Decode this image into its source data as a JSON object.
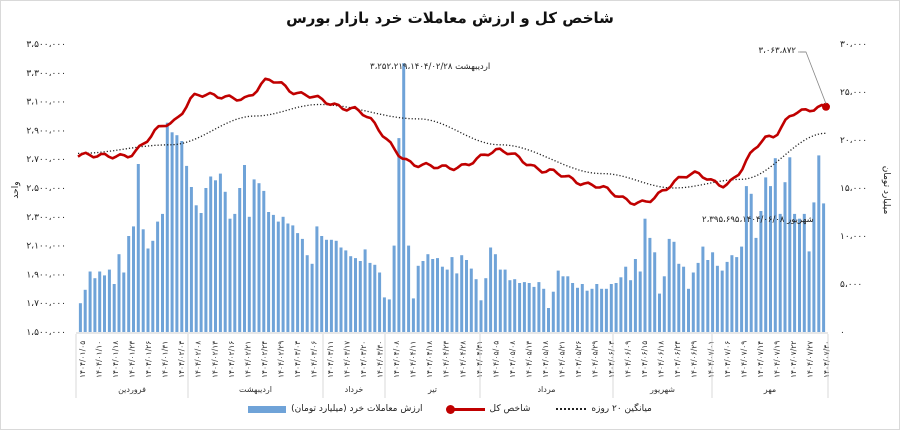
{
  "title": "شاخص کل و ارزش معاملات خرد بازار بورس",
  "left_axis": {
    "label": "واحد",
    "ticks": [
      "۳،۵۰۰،۰۰۰",
      "۳،۳۰۰،۰۰۰",
      "۳،۱۰۰،۰۰۰",
      "۲،۹۰۰،۰۰۰",
      "۲،۷۰۰،۰۰۰",
      "۲،۵۰۰،۰۰۰",
      "۲،۳۰۰،۰۰۰",
      "۲،۱۰۰،۰۰۰",
      "۱،۹۰۰،۰۰۰",
      "۱،۷۰۰،۰۰۰",
      "۱،۵۰۰،۰۰۰"
    ]
  },
  "right_axis": {
    "label": "میلیارد تومان",
    "ticks": [
      "۳۰،۰۰۰",
      "۲۵،۰۰۰",
      "۲۰،۰۰۰",
      "۱۵،۰۰۰",
      "۱۰،۰۰۰",
      "۵،۰۰۰",
      "۰"
    ]
  },
  "annotations": {
    "peak": "اردیبهشت ۳،۲۵۲،۲۱۹،۱۴۰۴/۰۲/۲۸",
    "trough": "شهریور ۲،۳۹۵،۶۹۵،۱۴۰۴/۰۶/۰۸",
    "last": "۳،۰۶۳،۸۷۲"
  },
  "months": [
    "فروردین",
    "اردیبهشت",
    "خرداد",
    "تیر",
    "مرداد",
    "شهریور",
    "مهر"
  ],
  "legend": {
    "bars": "ارزش معاملات خرد (میلیارد تومان)",
    "line": "شاخص کل",
    "ma": "میانگین ۲۰ روزه"
  },
  "x_tick_labels": [
    "۱۴۰۴/۰۱/۰۵",
    "۱۴۰۴/۰۱/۱۰",
    "۱۴۰۴/۰۱/۱۸",
    "۱۴۰۴/۰۱/۲۳",
    "۱۴۰۴/۰۱/۲۶",
    "۱۴۰۴/۰۱/۳۱",
    "۱۴۰۴/۰۲/۰۳",
    "۱۴۰۴/۰۲/۰۸",
    "۱۴۰۴/۰۲/۱۳",
    "۱۴۰۴/۰۲/۱۶",
    "۱۴۰۴/۰۲/۲۱",
    "۱۴۰۴/۰۲/۲۴",
    "۱۴۰۴/۰۲/۲۹",
    "۱۴۰۴/۰۳/۰۳",
    "۱۴۰۴/۰۳/۰۶",
    "۱۴۰۴/۰۳/۱۱",
    "۱۴۰۴/۰۳/۱۷",
    "۱۴۰۴/۰۳/۲۰",
    "۱۴۰۴/۰۳/۳۰",
    "۱۴۰۴/۰۴/۰۸",
    "۱۴۰۴/۰۴/۱۱",
    "۱۴۰۴/۰۴/۱۸",
    "۱۴۰۴/۰۴/۲۳",
    "۱۴۰۴/۰۴/۲۸",
    "۱۴۰۴/۰۴/۳۱",
    "۱۴۰۴/۰۵/۰۵",
    "۱۴۰۴/۰۵/۰۸",
    "۱۴۰۴/۰۵/۱۳",
    "۱۴۰۴/۰۵/۱۸",
    "۱۴۰۴/۰۵/۲۱",
    "۱۴۰۴/۰۵/۲۶",
    "۱۴۰۴/۰۵/۲۹",
    "۱۴۰۴/۰۶/۰۳",
    "۱۴۰۴/۰۶/۰۹",
    "۱۴۰۴/۰۶/۱۵",
    "۱۴۰۴/۰۶/۱۸",
    "۱۴۰۴/۰۶/۲۴",
    "۱۴۰۴/۰۶/۲۹",
    "۱۴۰۴/۰۷/۰۱",
    "۱۴۰۴/۰۷/۰۶",
    "۱۴۰۴/۰۷/۰۹",
    "۱۴۰۴/۰۷/۱۴",
    "۱۴۰۴/۰۷/۱۹",
    "۱۴۰۴/۰۷/۲۲",
    "۱۴۰۴/۰۷/۲۷",
    "۱۴۰۴/۰۷/۳۰"
  ],
  "chart_data": {
    "type": "bar+line",
    "title": "شاخص کل و ارزش معاملات خرد بازار بورس",
    "xlabel": "",
    "ylabel_left": "واحد",
    "ylabel_right": "میلیارد تومان",
    "ylim_left": [
      1500000,
      3500000
    ],
    "ylim_right": [
      0,
      30000
    ],
    "grid": false,
    "legend_position": "bottom",
    "colors": {
      "bars": "#6fa3d8",
      "index": "#c00000",
      "ma": "#222222"
    },
    "series": [
      {
        "name": "ارزش معاملات خرد (میلیارد تومان)",
        "type": "bar",
        "axis": "right",
        "values": [
          3000,
          4400,
          6300,
          5600,
          6300,
          5900,
          6500,
          5000,
          8100,
          6200,
          10000,
          11000,
          17500,
          10700,
          8700,
          9500,
          11500,
          12300,
          21800,
          20800,
          20500,
          19900,
          17300,
          15100,
          13200,
          12400,
          15000,
          16200,
          15800,
          16500,
          14600,
          11800,
          12300,
          15000,
          17400,
          12000,
          15900,
          15500,
          14700,
          12500,
          12200,
          11500,
          12000,
          11300,
          11100,
          10300,
          9700,
          8000,
          7100,
          11000,
          10000,
          9600,
          9600,
          9500,
          8800,
          8500,
          7900,
          7700,
          7400,
          8600,
          7200,
          7000,
          6200,
          3600,
          3400,
          9000,
          20200,
          28000,
          9000,
          3500,
          6900,
          7400,
          8100,
          7600,
          7700,
          6800,
          6500,
          7800,
          6100,
          8000,
          7500,
          6600,
          5500,
          3300,
          5600,
          8800,
          8100,
          6500,
          6500,
          5400,
          5500,
          5100,
          5200,
          5100,
          4700,
          5200,
          4500,
          2500,
          4200,
          6400,
          5800,
          5800,
          5100,
          4600,
          5000,
          4300,
          4500,
          5000,
          4500,
          4500,
          5000,
          5100,
          5700,
          6800,
          5400,
          7600,
          6300,
          11800,
          9800,
          8300,
          4000,
          5800,
          9700,
          9400,
          7100,
          6800,
          4500,
          6200,
          7200,
          8900,
          7500,
          8300,
          6900,
          6400,
          7300,
          8000,
          7800,
          8900,
          15200,
          14400,
          9800,
          12600,
          16100,
          15200,
          18100,
          12300,
          15600,
          18200,
          12300,
          11800,
          12300,
          8400,
          13500,
          18400,
          13400
        ],
        "note": "approximate daily values read from chart, ~159 trading days 1404/01/05–1404/07/30"
      },
      {
        "name": "شاخص کل",
        "type": "line",
        "axis": "left",
        "key_points": [
          {
            "x": "1404/01/05",
            "y": 2730000
          },
          {
            "x": "1404/01/18",
            "y": 2720000
          },
          {
            "x": "1404/01/31",
            "y": 2950000
          },
          {
            "x": "1404/02/08",
            "y": 3150000
          },
          {
            "x": "1404/02/21",
            "y": 3120000
          },
          {
            "x": "1404/02/28",
            "y": 3252219
          },
          {
            "x": "1404/03/06",
            "y": 3150000
          },
          {
            "x": "1404/03/20",
            "y": 3050000
          },
          {
            "x": "1404/04/08",
            "y": 2660000
          },
          {
            "x": "1404/04/18",
            "y": 2640000
          },
          {
            "x": "1404/04/31",
            "y": 2760000
          },
          {
            "x": "1404/05/13",
            "y": 2620000
          },
          {
            "x": "1404/05/26",
            "y": 2520000
          },
          {
            "x": "1404/06/08",
            "y": 2395695
          },
          {
            "x": "1404/06/24",
            "y": 2600000
          },
          {
            "x": "1404/07/01",
            "y": 2520000
          },
          {
            "x": "1404/07/14",
            "y": 2850000
          },
          {
            "x": "1404/07/22",
            "y": 3030000
          },
          {
            "x": "1404/07/30",
            "y": 3063872
          }
        ]
      },
      {
        "name": "میانگین ۲۰ روزه",
        "type": "line",
        "style": "dotted",
        "axis": "left",
        "key_points": [
          {
            "x": "1404/01/05",
            "y": 2740000
          },
          {
            "x": "1404/01/31",
            "y": 2800000
          },
          {
            "x": "1404/02/24",
            "y": 3000000
          },
          {
            "x": "1404/03/11",
            "y": 3080000
          },
          {
            "x": "1404/04/08",
            "y": 2980000
          },
          {
            "x": "1404/04/31",
            "y": 2800000
          },
          {
            "x": "1404/05/29",
            "y": 2600000
          },
          {
            "x": "1404/06/18",
            "y": 2500000
          },
          {
            "x": "1404/07/06",
            "y": 2560000
          },
          {
            "x": "1404/07/30",
            "y": 2880000
          }
        ]
      }
    ],
    "annotations": [
      {
        "text": "اردیبهشت ۳،۲۵۲،۲۱۹،۱۴۰۴/۰۲/۲۸",
        "type": "max"
      },
      {
        "text": "شهریور ۲،۳۹۵،۶۹۵،۱۴۰۴/۰۶/۰۸",
        "type": "min"
      },
      {
        "text": "۳،۰۶۳،۸۷۲",
        "type": "last"
      }
    ],
    "months": [
      "فروردین",
      "اردیبهشت",
      "خرداد",
      "تیر",
      "مرداد",
      "شهریور",
      "مهر"
    ]
  }
}
